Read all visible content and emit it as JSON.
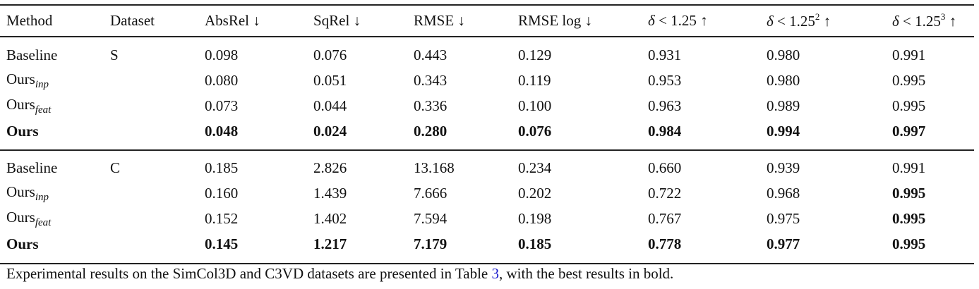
{
  "table": {
    "headers": [
      "Method",
      "Dataset",
      "AbsRel ↓",
      "SqRel ↓",
      "RMSE ↓",
      "RMSE log ↓",
      "δ < 1.25 ↑",
      "δ < 1.25",
      "δ < 1.25"
    ],
    "header_sup": [
      "",
      "",
      "",
      "",
      "",
      "",
      "",
      "2",
      "3"
    ],
    "header_suffix": [
      "",
      "",
      "",
      "",
      "",
      "",
      "",
      " ↑",
      " ↑"
    ],
    "groups": [
      {
        "rows": [
          {
            "method": "Baseline",
            "sub": "",
            "dataset": "S",
            "values": [
              "0.098",
              "0.076",
              "0.443",
              "0.129",
              "0.931",
              "0.980",
              "0.991"
            ],
            "bold": [
              false,
              false,
              false,
              false,
              false,
              false,
              false
            ],
            "method_bold": false
          },
          {
            "method": "Ours",
            "sub": "inp",
            "dataset": "",
            "values": [
              "0.080",
              "0.051",
              "0.343",
              "0.119",
              "0.953",
              "0.980",
              "0.995"
            ],
            "bold": [
              false,
              false,
              false,
              false,
              false,
              false,
              false
            ],
            "method_bold": false
          },
          {
            "method": "Ours",
            "sub": "feat",
            "dataset": "",
            "values": [
              "0.073",
              "0.044",
              "0.336",
              "0.100",
              "0.963",
              "0.989",
              "0.995"
            ],
            "bold": [
              false,
              false,
              false,
              false,
              false,
              false,
              false
            ],
            "method_bold": false
          },
          {
            "method": "Ours",
            "sub": "",
            "dataset": "",
            "values": [
              "0.048",
              "0.024",
              "0.280",
              "0.076",
              "0.984",
              "0.994",
              "0.997"
            ],
            "bold": [
              true,
              true,
              true,
              true,
              true,
              true,
              true
            ],
            "method_bold": true
          }
        ]
      },
      {
        "rows": [
          {
            "method": "Baseline",
            "sub": "",
            "dataset": "C",
            "values": [
              "0.185",
              "2.826",
              "13.168",
              "0.234",
              "0.660",
              "0.939",
              "0.991"
            ],
            "bold": [
              false,
              false,
              false,
              false,
              false,
              false,
              false
            ],
            "method_bold": false
          },
          {
            "method": "Ours",
            "sub": "inp",
            "dataset": "",
            "values": [
              "0.160",
              "1.439",
              "7.666",
              "0.202",
              "0.722",
              "0.968",
              "0.995"
            ],
            "bold": [
              false,
              false,
              false,
              false,
              false,
              false,
              true
            ],
            "method_bold": false
          },
          {
            "method": "Ours",
            "sub": "feat",
            "dataset": "",
            "values": [
              "0.152",
              "1.402",
              "7.594",
              "0.198",
              "0.767",
              "0.975",
              "0.995"
            ],
            "bold": [
              false,
              false,
              false,
              false,
              false,
              false,
              true
            ],
            "method_bold": false
          },
          {
            "method": "Ours",
            "sub": "",
            "dataset": "",
            "values": [
              "0.145",
              "1.217",
              "7.179",
              "0.185",
              "0.778",
              "0.977",
              "0.995"
            ],
            "bold": [
              true,
              true,
              true,
              true,
              true,
              true,
              true
            ],
            "method_bold": true
          }
        ]
      }
    ]
  },
  "caption": {
    "before": "Experimental results on the SimCol3D and C3VD datasets are presented in Table ",
    "ref": "3",
    "after": ", with the best results in bold."
  }
}
